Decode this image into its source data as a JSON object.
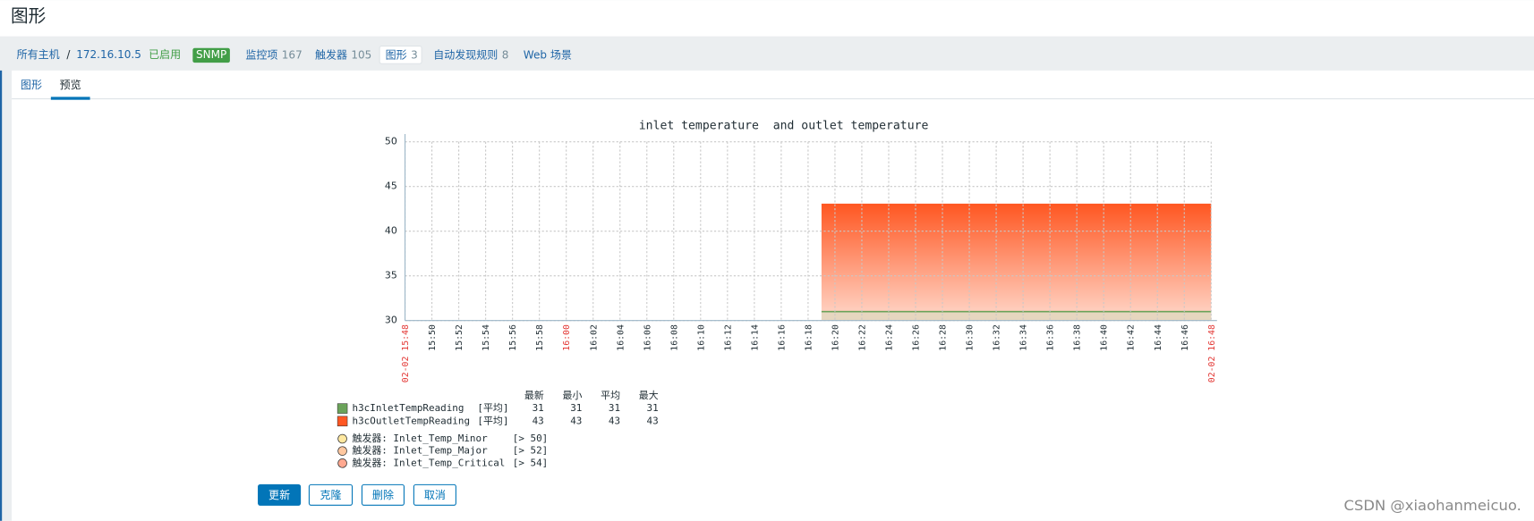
{
  "header": {
    "title": "图形"
  },
  "breadcrumb": {
    "all_hosts": "所有主机",
    "separator": "/",
    "host": "172.16.10.5",
    "status": "已启用",
    "badge": "SNMP",
    "nav": [
      {
        "label": "监控项",
        "count": 167
      },
      {
        "label": "触发器",
        "count": 105
      },
      {
        "label": "图形",
        "count": 3
      },
      {
        "label": "自动发现规则",
        "count": 8
      },
      {
        "label": "Web 场景"
      }
    ]
  },
  "tabs": [
    "图形",
    "预览"
  ],
  "chart_data": {
    "type": "area",
    "title": "inlet temperature  and outlet temperature",
    "ylim": [
      30,
      50
    ],
    "yticks": [
      30,
      35,
      40,
      45,
      50
    ],
    "grid": true,
    "xlim": [
      "02-02 15:48",
      "02-02 16:48"
    ],
    "xticks": [
      "02-02 15:48",
      "15:50",
      "15:52",
      "15:54",
      "15:56",
      "15:58",
      "16:00",
      "16:02",
      "16:04",
      "16:06",
      "16:08",
      "16:10",
      "16:12",
      "16:14",
      "16:16",
      "16:18",
      "16:20",
      "16:22",
      "16:24",
      "16:26",
      "16:28",
      "16:30",
      "16:32",
      "16:34",
      "16:36",
      "16:38",
      "16:40",
      "16:42",
      "16:44",
      "16:46",
      "02-02 16:48"
    ],
    "series": [
      {
        "name": "h3cOutletTempReading",
        "color": "#ff5722",
        "x": [
          "16:19",
          "16:48"
        ],
        "values": [
          43,
          43
        ]
      },
      {
        "name": "h3cInletTempReading",
        "color": "#6ba35a",
        "x": [
          "16:19",
          "16:48"
        ],
        "values": [
          31,
          31
        ]
      }
    ]
  },
  "legend": {
    "headers": [
      "最新",
      "最小",
      "平均",
      "最大"
    ],
    "rows": [
      {
        "name": "h3cInletTempReading",
        "func": "[平均]",
        "stats": [
          31,
          31,
          31,
          31
        ]
      },
      {
        "name": "h3cOutletTempReading",
        "func": "[平均]",
        "stats": [
          43,
          43,
          43,
          43
        ]
      }
    ],
    "triggers": [
      {
        "label": "触发器: Inlet_Temp_Minor",
        "threshold": "[> 50]"
      },
      {
        "label": "触发器: Inlet_Temp_Major",
        "threshold": "[> 52]"
      },
      {
        "label": "触发器: Inlet_Temp_Critical",
        "threshold": "[> 54]"
      }
    ]
  },
  "buttons": [
    "更新",
    "克隆",
    "删除",
    "取消"
  ],
  "watermark": "CSDN @xiaohanmeicuo."
}
